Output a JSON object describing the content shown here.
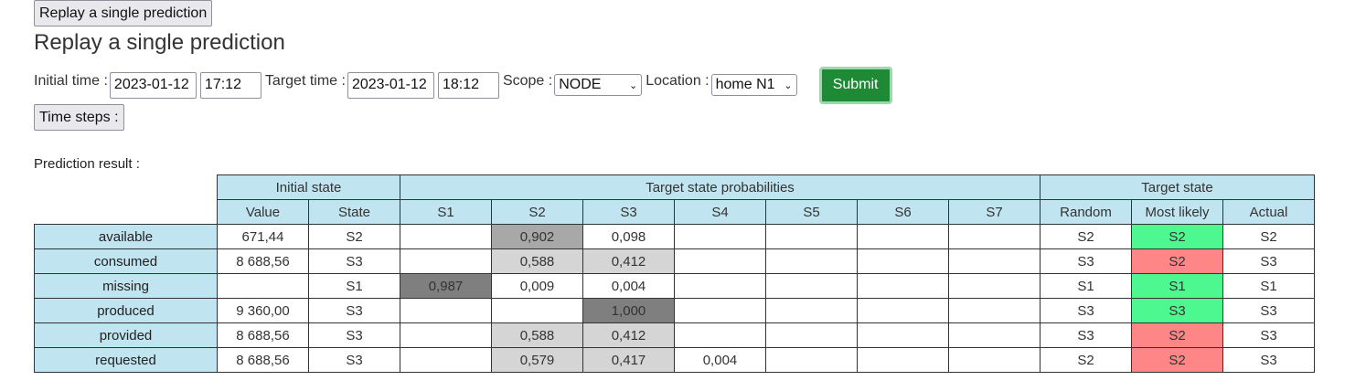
{
  "top_button": "Replay a single prediction",
  "title": "Replay a single prediction",
  "form": {
    "initial_time_label": "Initial time :",
    "initial_date": "2023-01-12",
    "initial_time": "17:12",
    "target_time_label": "Target time :",
    "target_date": "2023-01-12",
    "target_time": "18:12",
    "scope_label": "Scope :",
    "scope_value": "NODE",
    "location_label": "Location :",
    "location_value": "home N1",
    "submit_label": "Submit",
    "time_steps_label": "Time steps :"
  },
  "result_label": "Prediction result :",
  "table": {
    "group_headers": {
      "initial": "Initial state",
      "probs": "Target state probabilities",
      "target": "Target state"
    },
    "columns": [
      "Value",
      "State",
      "S1",
      "S2",
      "S3",
      "S4",
      "S5",
      "S6",
      "S7",
      "Random",
      "Most likely",
      "Actual"
    ],
    "rows": [
      {
        "label": "available",
        "value": "671,44",
        "state": "S2",
        "probs": [
          "",
          "0,902",
          "0,098",
          "",
          "",
          "",
          ""
        ],
        "random": "S2",
        "most_likely": "S2",
        "actual": "S2"
      },
      {
        "label": "consumed",
        "value": "8 688,56",
        "state": "S3",
        "probs": [
          "",
          "0,588",
          "0,412",
          "",
          "",
          "",
          ""
        ],
        "random": "S3",
        "most_likely": "S2",
        "actual": "S3"
      },
      {
        "label": "missing",
        "value": "",
        "state": "S1",
        "probs": [
          "0,987",
          "0,009",
          "0,004",
          "",
          "",
          "",
          ""
        ],
        "random": "S1",
        "most_likely": "S1",
        "actual": "S1"
      },
      {
        "label": "produced",
        "value": "9 360,00",
        "state": "S3",
        "probs": [
          "",
          "",
          "1,000",
          "",
          "",
          "",
          ""
        ],
        "random": "S3",
        "most_likely": "S3",
        "actual": "S3"
      },
      {
        "label": "provided",
        "value": "8 688,56",
        "state": "S3",
        "probs": [
          "",
          "0,588",
          "0,412",
          "",
          "",
          "",
          ""
        ],
        "random": "S3",
        "most_likely": "S2",
        "actual": "S3"
      },
      {
        "label": "requested",
        "value": "8 688,56",
        "state": "S3",
        "probs": [
          "",
          "0,579",
          "0,417",
          "0,004",
          "",
          "",
          ""
        ],
        "random": "S2",
        "most_likely": "S2",
        "actual": "S3"
      }
    ]
  },
  "colors": {
    "header_bg": "#c0e4f0",
    "match": "#4ef891",
    "mismatch": "#ff8686",
    "submit": "#1f8a36"
  }
}
